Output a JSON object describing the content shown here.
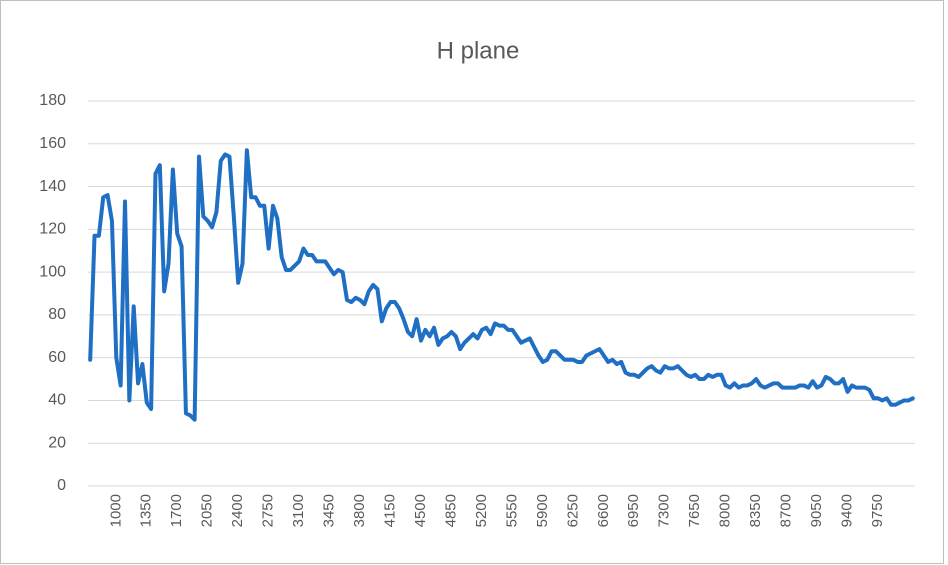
{
  "chart_data": {
    "type": "line",
    "title": "H plane",
    "categories": [
      null,
      null,
      null,
      null,
      null,
      null,
      1000,
      null,
      null,
      null,
      null,
      null,
      null,
      1350,
      null,
      null,
      null,
      null,
      null,
      null,
      1700,
      null,
      null,
      null,
      null,
      null,
      null,
      2050,
      null,
      null,
      null,
      null,
      null,
      null,
      2400,
      null,
      null,
      null,
      null,
      null,
      null,
      2750,
      null,
      null,
      null,
      null,
      null,
      null,
      3100,
      null,
      null,
      null,
      null,
      null,
      null,
      3450,
      null,
      null,
      null,
      null,
      null,
      null,
      3800,
      null,
      null,
      null,
      null,
      null,
      null,
      4150,
      null,
      null,
      null,
      null,
      null,
      null,
      4500,
      null,
      null,
      null,
      null,
      null,
      null,
      4850,
      null,
      null,
      null,
      null,
      null,
      null,
      5200,
      null,
      null,
      null,
      null,
      null,
      null,
      5550,
      null,
      null,
      null,
      null,
      null,
      null,
      5900,
      null,
      null,
      null,
      null,
      null,
      null,
      6250,
      null,
      null,
      null,
      null,
      null,
      null,
      6600,
      null,
      null,
      null,
      null,
      null,
      null,
      6950,
      null,
      null,
      null,
      null,
      null,
      null,
      7300,
      null,
      null,
      null,
      null,
      null,
      null,
      7650,
      null,
      null,
      null,
      null,
      null,
      null,
      8000,
      null,
      null,
      null,
      null,
      null,
      null,
      8350,
      null,
      null,
      null,
      null,
      null,
      null,
      8700,
      null,
      null,
      null,
      null,
      null,
      null,
      9050,
      null,
      null,
      null,
      null,
      null,
      null,
      9400,
      null,
      null,
      null,
      null,
      null,
      null,
      9750,
      null,
      null,
      null,
      null,
      null,
      null,
      null,
      null
    ],
    "values": [
      59,
      117,
      117,
      135,
      136,
      124,
      60,
      47,
      133,
      40,
      84,
      48,
      57,
      39,
      36,
      146,
      150,
      91,
      104,
      148,
      118,
      112,
      34,
      33,
      31,
      154,
      126,
      124,
      121,
      128,
      152,
      155,
      154,
      126,
      95,
      104,
      157,
      135,
      135,
      131,
      131,
      111,
      131,
      125,
      107,
      101,
      101,
      103,
      105,
      111,
      108,
      108,
      105,
      105,
      105,
      102,
      99,
      101,
      100,
      87,
      86,
      88,
      87,
      85,
      91,
      94,
      92,
      77,
      83,
      86,
      86,
      83,
      78,
      72,
      70,
      78,
      68,
      73,
      70,
      74,
      66,
      69,
      70,
      72,
      70,
      64,
      67,
      69,
      71,
      69,
      73,
      74,
      71,
      76,
      75,
      75,
      73,
      73,
      70,
      67,
      68,
      69,
      65,
      61,
      58,
      59,
      63,
      63,
      61,
      59,
      59,
      59,
      58,
      58,
      61,
      62,
      63,
      64,
      61,
      58,
      59,
      57,
      58,
      53,
      52,
      52,
      51,
      53,
      55,
      56,
      54,
      53,
      56,
      55,
      55,
      56,
      54,
      52,
      51,
      52,
      50,
      50,
      52,
      51,
      52,
      52,
      47,
      46,
      48,
      46,
      47,
      47,
      48,
      50,
      47,
      46,
      47,
      48,
      48,
      46,
      46,
      46,
      46,
      47,
      47,
      46,
      49,
      46,
      47,
      51,
      50,
      48,
      48,
      50,
      44,
      47,
      46,
      46,
      46,
      45,
      41,
      41,
      40,
      41,
      38,
      38,
      39,
      40,
      40,
      41
    ],
    "color": "#1f6fc4",
    "ylim": [
      0,
      180
    ],
    "yticks": [
      0,
      20,
      40,
      60,
      80,
      100,
      120,
      140,
      160,
      180
    ],
    "grid": true
  }
}
